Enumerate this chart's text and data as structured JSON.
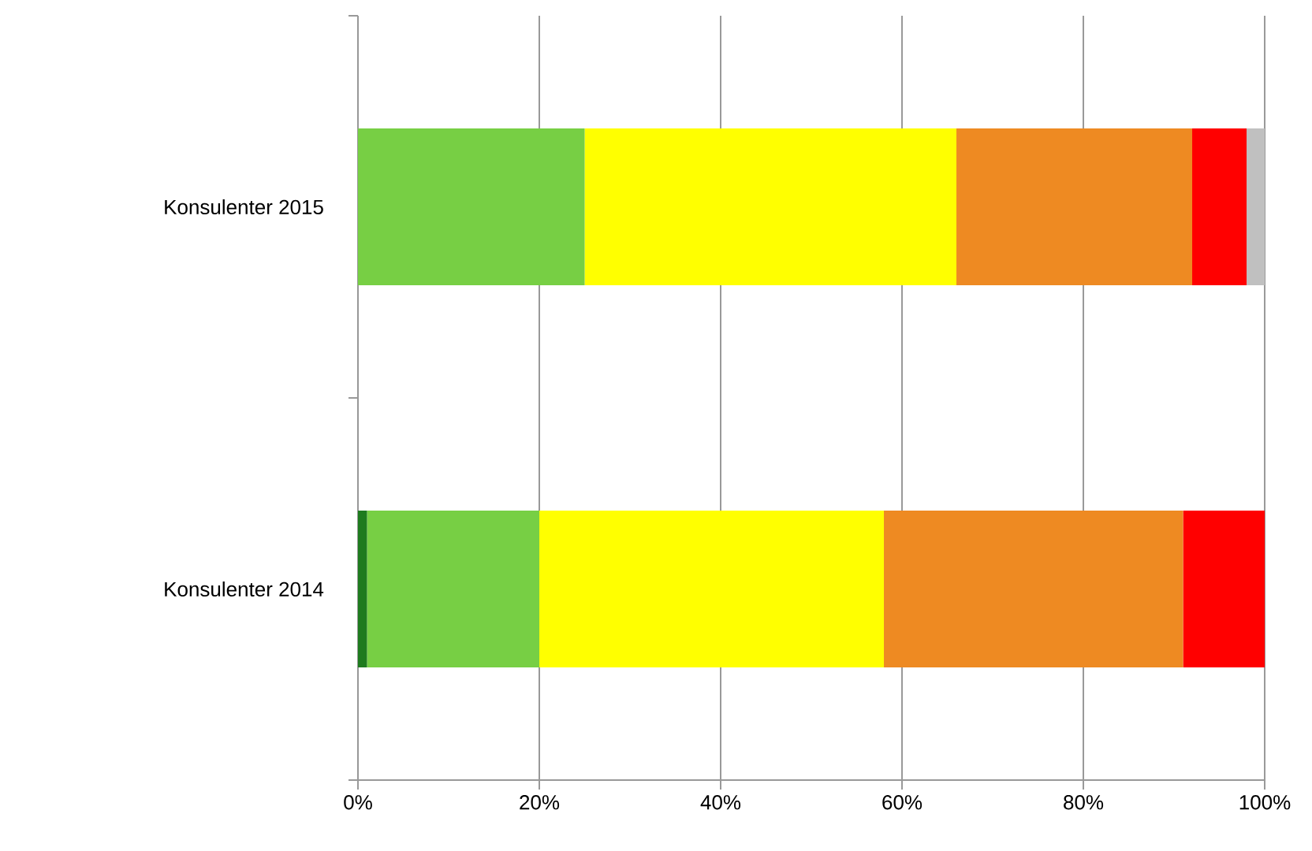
{
  "chart_data": {
    "type": "bar",
    "orientation": "horizontal",
    "stacked": true,
    "categories": [
      "Konsulenter 2015",
      "Konsulenter 2014"
    ],
    "series": [
      {
        "color": "#1e7b1e",
        "values": [
          0,
          1
        ]
      },
      {
        "color": "#77cf44",
        "values": [
          25,
          19
        ]
      },
      {
        "color": "#ffff00",
        "values": [
          41,
          38
        ]
      },
      {
        "color": "#ee8a22",
        "values": [
          26,
          33
        ]
      },
      {
        "color": "#ff0000",
        "values": [
          6,
          9
        ]
      },
      {
        "color": "#c0c0c0",
        "values": [
          2,
          0
        ]
      }
    ],
    "xlim": [
      0,
      100
    ],
    "xticks": [
      {
        "value": 0,
        "label": "0%"
      },
      {
        "value": 20,
        "label": "20%"
      },
      {
        "value": 40,
        "label": "40%"
      },
      {
        "value": 60,
        "label": "60%"
      },
      {
        "value": 80,
        "label": "80%"
      },
      {
        "value": 100,
        "label": "100%"
      }
    ],
    "grid": "x"
  }
}
